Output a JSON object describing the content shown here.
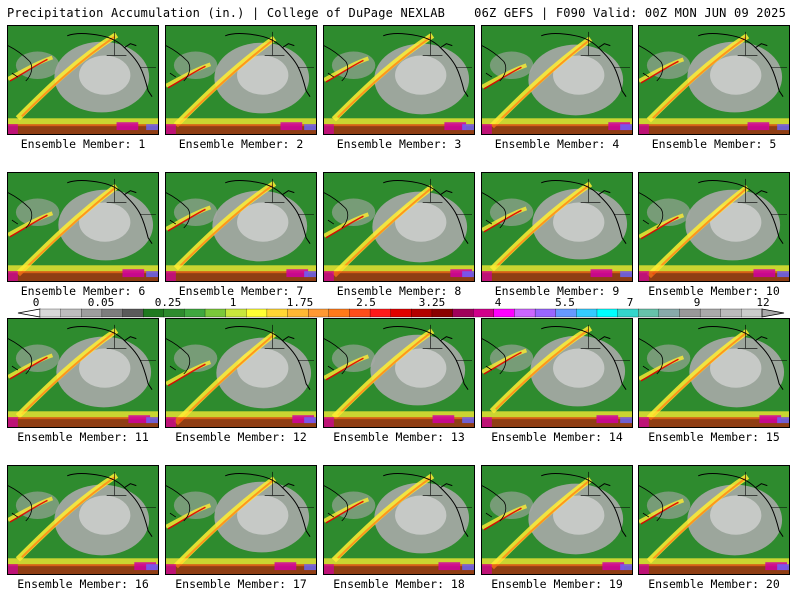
{
  "header": {
    "title_left": "Precipitation Accumulation (in.) | College of DuPage NEXLAB",
    "title_right": "06Z GEFS | F090 Valid: 00Z MON JUN 09 2025"
  },
  "colorbar": {
    "labels": [
      "0",
      "0.05",
      "0.25",
      "1",
      "1.75",
      "2.5",
      "3.25",
      "4",
      "5.5",
      "7",
      "9",
      "12"
    ],
    "colors": [
      "#d8d8d8",
      "#bdbdbd",
      "#9e9e9e",
      "#7d7d7d",
      "#5a5a5a",
      "#1f7a1f",
      "#2e8b2e",
      "#3fa83f",
      "#7ac83a",
      "#c8e63c",
      "#ffff33",
      "#ffd633",
      "#ffb833",
      "#ff9933",
      "#ff7a1a",
      "#ff4d1a",
      "#ff1a1a",
      "#e00000",
      "#b30000",
      "#8a0000",
      "#a0005a",
      "#d0008a",
      "#ff00ff",
      "#cc66ff",
      "#9966ff",
      "#6699ff",
      "#33ccff",
      "#00ffff",
      "#33d6cc",
      "#66c2aa",
      "#88aaaa",
      "#999999",
      "#aaaaaa",
      "#bbbbbb",
      "#cccccc"
    ]
  },
  "members": [
    {
      "label": "Ensemble Member: 1"
    },
    {
      "label": "Ensemble Member: 2"
    },
    {
      "label": "Ensemble Member: 3"
    },
    {
      "label": "Ensemble Member: 4"
    },
    {
      "label": "Ensemble Member: 5"
    },
    {
      "label": "Ensemble Member: 6"
    },
    {
      "label": "Ensemble Member: 7"
    },
    {
      "label": "Ensemble Member: 8"
    },
    {
      "label": "Ensemble Member: 9"
    },
    {
      "label": "Ensemble Member: 10"
    },
    {
      "label": "Ensemble Member: 11"
    },
    {
      "label": "Ensemble Member: 12"
    },
    {
      "label": "Ensemble Member: 13"
    },
    {
      "label": "Ensemble Member: 14"
    },
    {
      "label": "Ensemble Member: 15"
    },
    {
      "label": "Ensemble Member: 16"
    },
    {
      "label": "Ensemble Member: 17"
    },
    {
      "label": "Ensemble Member: 18"
    },
    {
      "label": "Ensemble Member: 19"
    },
    {
      "label": "Ensemble Member: 20"
    }
  ],
  "map_colors": {
    "land_green": "#2e8b2e",
    "dry_gray": "#a8a8a8",
    "dry_light": "#d8d8d8",
    "band_yellow": "#ffee33",
    "band_orange": "#ff8c1a",
    "band_red": "#e00000",
    "band_magenta": "#d000a0",
    "band_blue": "#6666ff",
    "coast": "#000000"
  }
}
